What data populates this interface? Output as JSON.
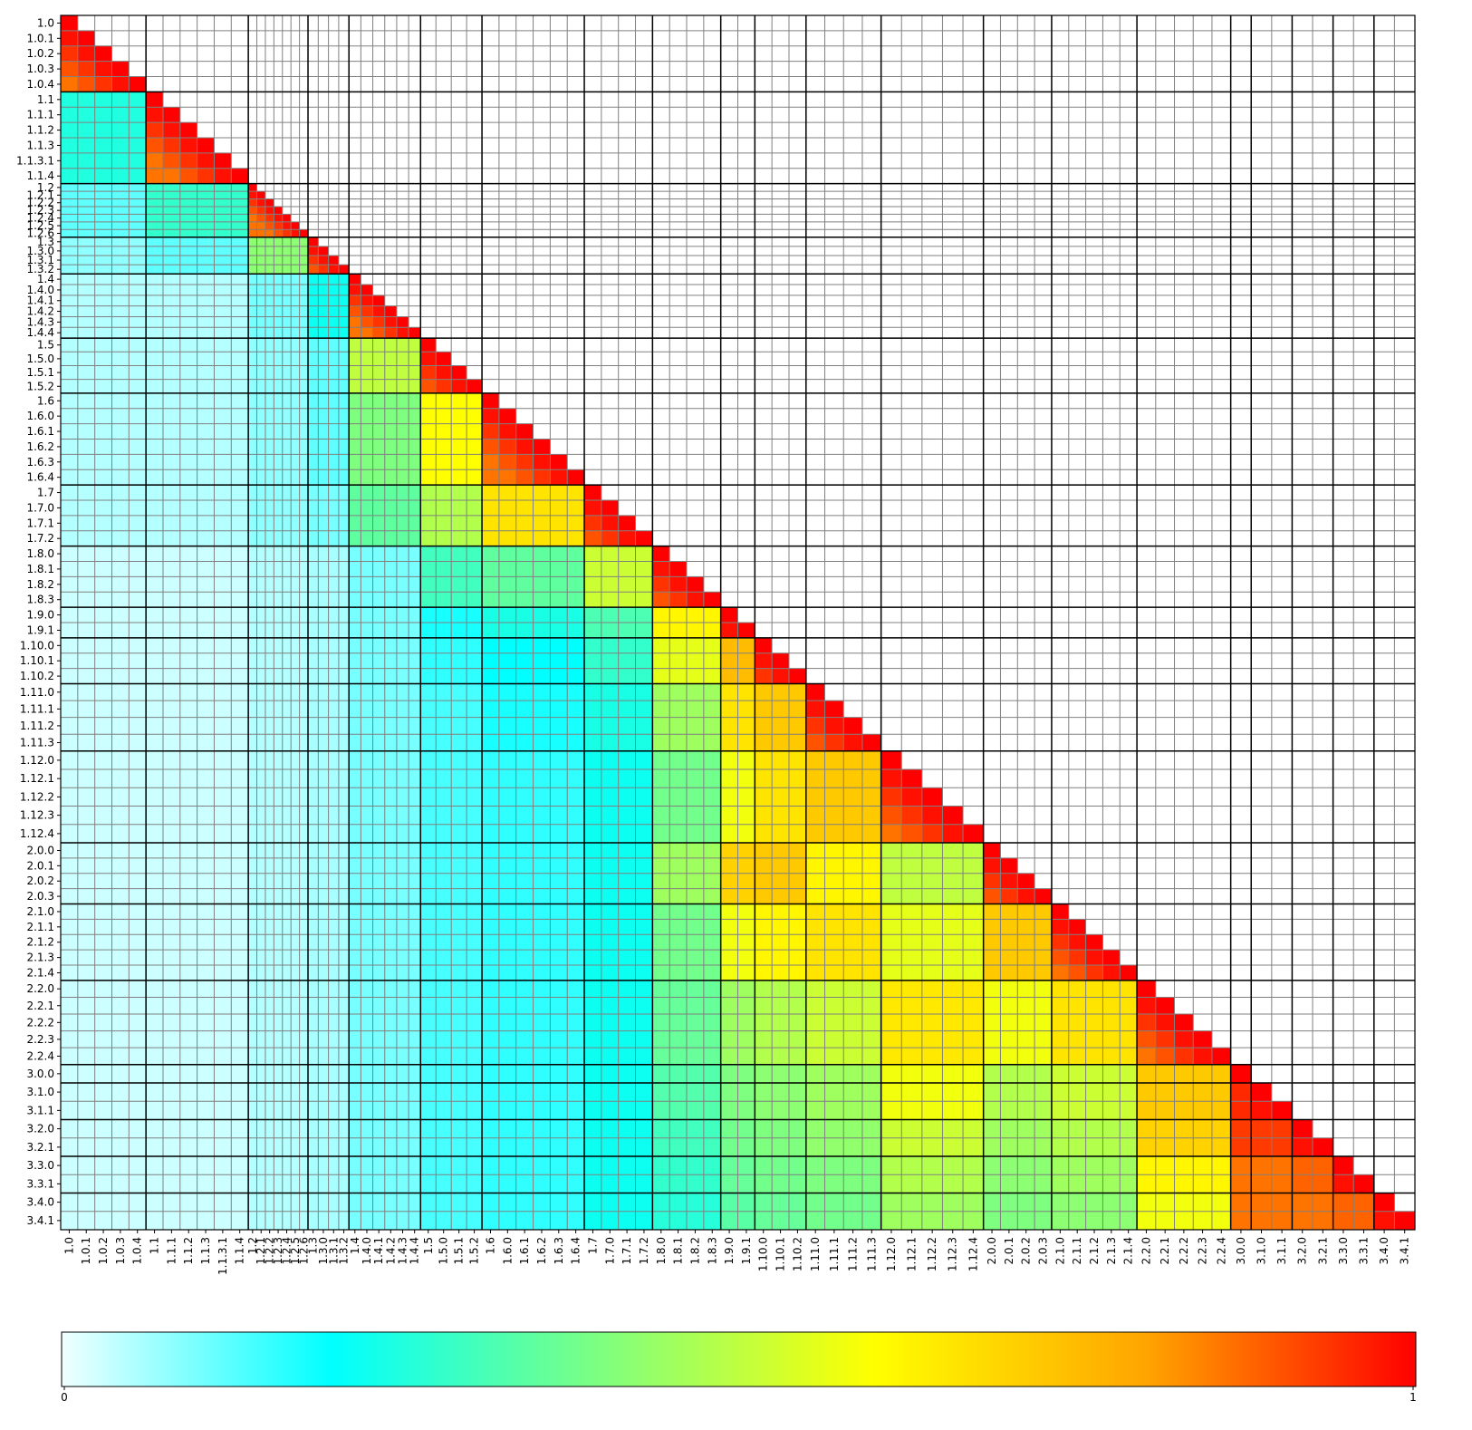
{
  "chart_data": {
    "type": "heatmap",
    "title": "",
    "xlabel": "",
    "ylabel": "",
    "grid": true,
    "colorbar": {
      "placement": "bottom",
      "min_label": "0",
      "max_label": "1",
      "colors": [
        "#f0ffff",
        "#00ffff",
        "#7fff7f",
        "#ffff00",
        "#ffa500",
        "#ff0000"
      ]
    },
    "colors": {
      "major_grid": "#000000",
      "minor_grid": "#808080",
      "empty_cell": "#ffffff"
    },
    "rows": [
      {
        "label": "1.0",
        "unit": 1
      },
      {
        "label": "1.0.1",
        "unit": 1
      },
      {
        "label": "1.0.2",
        "unit": 1
      },
      {
        "label": "1.0.3",
        "unit": 1
      },
      {
        "label": "1.0.4",
        "unit": 1
      },
      {
        "label": "1.1",
        "unit": 1
      },
      {
        "label": "1.1.1",
        "unit": 1
      },
      {
        "label": "1.1.2",
        "unit": 1
      },
      {
        "label": "1.1.3",
        "unit": 1
      },
      {
        "label": "1.1.3.1",
        "unit": 1
      },
      {
        "label": "1.1.4",
        "unit": 1
      },
      {
        "label": "1.2",
        "unit": 0.5
      },
      {
        "label": "1.2.1",
        "unit": 0.5
      },
      {
        "label": "1.2.2",
        "unit": 0.5
      },
      {
        "label": "1.2.3",
        "unit": 0.5
      },
      {
        "label": "1.2.4",
        "unit": 0.5
      },
      {
        "label": "1.2.5",
        "unit": 0.5
      },
      {
        "label": "1.2.6",
        "unit": 0.5
      },
      {
        "label": "1.3",
        "unit": 0.6
      },
      {
        "label": "1.3.0",
        "unit": 0.6
      },
      {
        "label": "1.3.1",
        "unit": 0.6
      },
      {
        "label": "1.3.2",
        "unit": 0.6
      },
      {
        "label": "1.4",
        "unit": 0.7
      },
      {
        "label": "1.4.0",
        "unit": 0.7
      },
      {
        "label": "1.4.1",
        "unit": 0.7
      },
      {
        "label": "1.4.2",
        "unit": 0.7
      },
      {
        "label": "1.4.3",
        "unit": 0.7
      },
      {
        "label": "1.4.4",
        "unit": 0.7
      },
      {
        "label": "1.5",
        "unit": 0.9
      },
      {
        "label": "1.5.0",
        "unit": 0.9
      },
      {
        "label": "1.5.1",
        "unit": 0.9
      },
      {
        "label": "1.5.2",
        "unit": 0.9
      },
      {
        "label": "1.6",
        "unit": 1
      },
      {
        "label": "1.6.0",
        "unit": 1
      },
      {
        "label": "1.6.1",
        "unit": 1
      },
      {
        "label": "1.6.2",
        "unit": 1
      },
      {
        "label": "1.6.3",
        "unit": 1
      },
      {
        "label": "1.6.4",
        "unit": 1
      },
      {
        "label": "1.7",
        "unit": 1
      },
      {
        "label": "1.7.0",
        "unit": 1
      },
      {
        "label": "1.7.1",
        "unit": 1
      },
      {
        "label": "1.7.2",
        "unit": 1
      },
      {
        "label": "1.8.0",
        "unit": 1
      },
      {
        "label": "1.8.1",
        "unit": 1
      },
      {
        "label": "1.8.2",
        "unit": 1
      },
      {
        "label": "1.8.3",
        "unit": 1
      },
      {
        "label": "1.9.0",
        "unit": 1
      },
      {
        "label": "1.9.1",
        "unit": 1
      },
      {
        "label": "1.10.0",
        "unit": 1
      },
      {
        "label": "1.10.1",
        "unit": 1
      },
      {
        "label": "1.10.2",
        "unit": 1
      },
      {
        "label": "1.11.0",
        "unit": 1.1
      },
      {
        "label": "1.11.1",
        "unit": 1.1
      },
      {
        "label": "1.11.2",
        "unit": 1.1
      },
      {
        "label": "1.11.3",
        "unit": 1.1
      },
      {
        "label": "1.12.0",
        "unit": 1.2
      },
      {
        "label": "1.12.1",
        "unit": 1.2
      },
      {
        "label": "1.12.2",
        "unit": 1.2
      },
      {
        "label": "1.12.3",
        "unit": 1.2
      },
      {
        "label": "1.12.4",
        "unit": 1.2
      },
      {
        "label": "2.0.0",
        "unit": 1
      },
      {
        "label": "2.0.1",
        "unit": 1
      },
      {
        "label": "2.0.2",
        "unit": 1
      },
      {
        "label": "2.0.3",
        "unit": 1
      },
      {
        "label": "2.1.0",
        "unit": 1
      },
      {
        "label": "2.1.1",
        "unit": 1
      },
      {
        "label": "2.1.2",
        "unit": 1
      },
      {
        "label": "2.1.3",
        "unit": 1
      },
      {
        "label": "2.1.4",
        "unit": 1
      },
      {
        "label": "2.2.0",
        "unit": 1.1
      },
      {
        "label": "2.2.1",
        "unit": 1.1
      },
      {
        "label": "2.2.2",
        "unit": 1.1
      },
      {
        "label": "2.2.3",
        "unit": 1.1
      },
      {
        "label": "2.2.4",
        "unit": 1.1
      },
      {
        "label": "3.0.0",
        "unit": 1.2
      },
      {
        "label": "3.1.0",
        "unit": 1.2
      },
      {
        "label": "3.1.1",
        "unit": 1.2
      },
      {
        "label": "3.2.0",
        "unit": 1.2
      },
      {
        "label": "3.2.1",
        "unit": 1.2
      },
      {
        "label": "3.3.0",
        "unit": 1.2
      },
      {
        "label": "3.3.1",
        "unit": 1.2
      },
      {
        "label": "3.4.0",
        "unit": 1.2
      },
      {
        "label": "3.4.1",
        "unit": 1.2
      }
    ],
    "groups": [
      {
        "name": "1.0",
        "start": 0,
        "end": 4
      },
      {
        "name": "1.1",
        "start": 5,
        "end": 10
      },
      {
        "name": "1.2",
        "start": 11,
        "end": 17
      },
      {
        "name": "1.3",
        "start": 18,
        "end": 21
      },
      {
        "name": "1.4",
        "start": 22,
        "end": 27
      },
      {
        "name": "1.5",
        "start": 28,
        "end": 31
      },
      {
        "name": "1.6",
        "start": 32,
        "end": 37
      },
      {
        "name": "1.7",
        "start": 38,
        "end": 41
      },
      {
        "name": "1.8",
        "start": 42,
        "end": 45
      },
      {
        "name": "1.9",
        "start": 46,
        "end": 47
      },
      {
        "name": "1.10",
        "start": 48,
        "end": 50
      },
      {
        "name": "1.11",
        "start": 51,
        "end": 54
      },
      {
        "name": "1.12",
        "start": 55,
        "end": 59
      },
      {
        "name": "2.0",
        "start": 60,
        "end": 63
      },
      {
        "name": "2.1",
        "start": 64,
        "end": 68
      },
      {
        "name": "2.2",
        "start": 69,
        "end": 73
      },
      {
        "name": "3.0",
        "start": 74,
        "end": 74
      },
      {
        "name": "3.1",
        "start": 75,
        "end": 76
      },
      {
        "name": "3.2",
        "start": 77,
        "end": 78
      },
      {
        "name": "3.3",
        "start": 79,
        "end": 80
      },
      {
        "name": "3.4",
        "start": 81,
        "end": 82
      }
    ],
    "group_similarity": [
      [
        0.65
      ],
      [
        0.25,
        0.8
      ],
      [
        0.12,
        0.28,
        0.8
      ],
      [
        0.08,
        0.12,
        0.42,
        0.85
      ],
      [
        0.05,
        0.05,
        0.1,
        0.22,
        0.85
      ],
      [
        0.05,
        0.05,
        0.08,
        0.12,
        0.5,
        0.85
      ],
      [
        0.05,
        0.05,
        0.08,
        0.12,
        0.4,
        0.6,
        0.92
      ],
      [
        0.05,
        0.05,
        0.08,
        0.1,
        0.35,
        0.48,
        0.66,
        0.88
      ],
      [
        0.03,
        0.03,
        0.05,
        0.06,
        0.1,
        0.3,
        0.35,
        0.52,
        0.98
      ],
      [
        0.03,
        0.03,
        0.05,
        0.06,
        0.1,
        0.18,
        0.24,
        0.32,
        0.62,
        0.9
      ],
      [
        0.03,
        0.03,
        0.05,
        0.06,
        0.1,
        0.16,
        0.2,
        0.28,
        0.56,
        0.75,
        0.96
      ],
      [
        0.03,
        0.03,
        0.05,
        0.06,
        0.1,
        0.14,
        0.18,
        0.24,
        0.45,
        0.66,
        0.72,
        0.94
      ],
      [
        0.03,
        0.03,
        0.05,
        0.06,
        0.1,
        0.14,
        0.16,
        0.22,
        0.38,
        0.58,
        0.66,
        0.72,
        0.96
      ],
      [
        0.03,
        0.03,
        0.05,
        0.06,
        0.1,
        0.14,
        0.16,
        0.22,
        0.45,
        0.7,
        0.72,
        0.62,
        0.5,
        0.96
      ],
      [
        0.03,
        0.03,
        0.05,
        0.06,
        0.1,
        0.14,
        0.16,
        0.22,
        0.38,
        0.58,
        0.62,
        0.66,
        0.56,
        0.72,
        0.95
      ],
      [
        0.03,
        0.03,
        0.05,
        0.06,
        0.1,
        0.14,
        0.16,
        0.22,
        0.36,
        0.45,
        0.48,
        0.52,
        0.65,
        0.58,
        0.66,
        0.96
      ],
      [
        0.03,
        0.03,
        0.05,
        0.06,
        0.1,
        0.14,
        0.16,
        0.22,
        0.33,
        0.4,
        0.42,
        0.45,
        0.58,
        0.48,
        0.52,
        0.72,
        1.0
      ],
      [
        0.03,
        0.03,
        0.05,
        0.06,
        0.1,
        0.14,
        0.16,
        0.22,
        0.33,
        0.4,
        0.42,
        0.45,
        0.58,
        0.48,
        0.52,
        0.72,
        0.95,
        0.96
      ],
      [
        0.03,
        0.03,
        0.05,
        0.06,
        0.1,
        0.14,
        0.16,
        0.22,
        0.3,
        0.38,
        0.4,
        0.43,
        0.52,
        0.45,
        0.48,
        0.7,
        0.93,
        0.93,
        0.95
      ],
      [
        0.03,
        0.03,
        0.05,
        0.06,
        0.1,
        0.14,
        0.16,
        0.22,
        0.28,
        0.36,
        0.38,
        0.4,
        0.48,
        0.42,
        0.45,
        0.62,
        0.86,
        0.86,
        0.88,
        0.94
      ],
      [
        0.03,
        0.03,
        0.05,
        0.06,
        0.1,
        0.14,
        0.16,
        0.22,
        0.26,
        0.34,
        0.36,
        0.38,
        0.45,
        0.4,
        0.42,
        0.58,
        0.86,
        0.86,
        0.86,
        0.88,
        0.94
      ]
    ],
    "diagonal_pattern": [
      0.98,
      0.94,
      0.9,
      0.86
    ]
  }
}
